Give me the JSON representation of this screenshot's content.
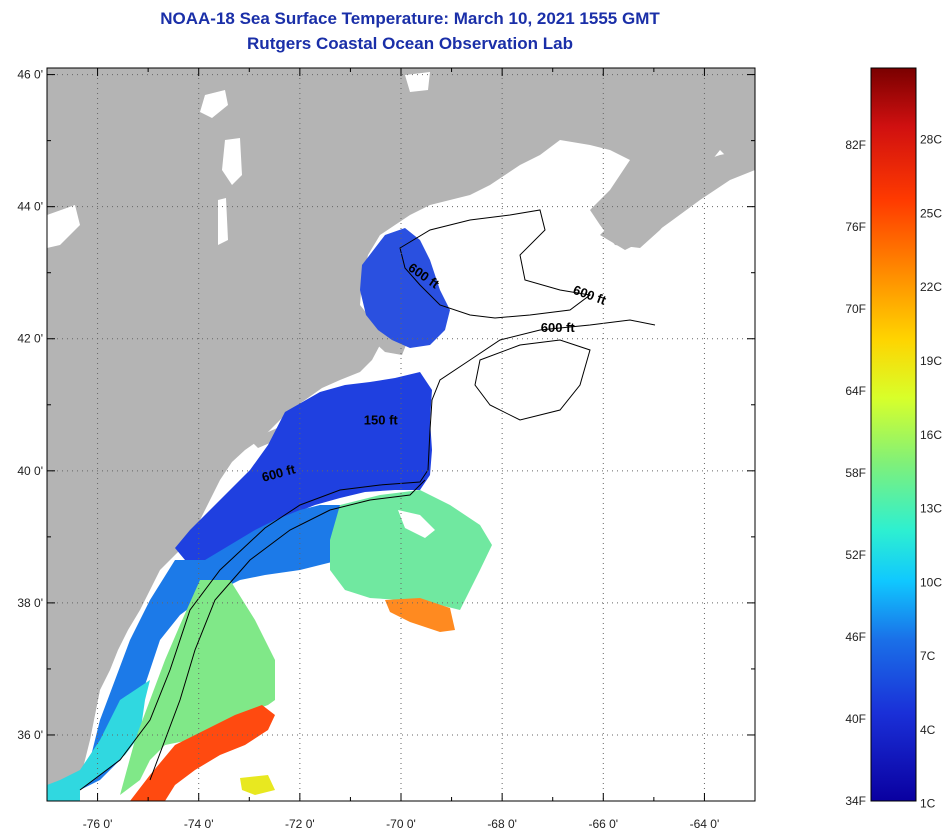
{
  "header": {
    "title": "NOAA-18 Sea Surface Temperature:  March 10, 2021 1555 GMT",
    "subtitle": "Rutgers Coastal Ocean Observation Lab"
  },
  "map": {
    "lat_ticks": [
      {
        "value": 46,
        "label": "46 0'"
      },
      {
        "value": 44,
        "label": "44 0'"
      },
      {
        "value": 42,
        "label": "42 0'"
      },
      {
        "value": 40,
        "label": "40 0'"
      },
      {
        "value": 38,
        "label": "38 0'"
      },
      {
        "value": 36,
        "label": "36 0'"
      }
    ],
    "lon_ticks": [
      {
        "value": -76,
        "label": "-76 0'"
      },
      {
        "value": -74,
        "label": "-74 0'"
      },
      {
        "value": -72,
        "label": "-72 0'"
      },
      {
        "value": -70,
        "label": "-70 0'"
      },
      {
        "value": -68,
        "label": "-68 0'"
      },
      {
        "value": -66,
        "label": "-66 0'"
      },
      {
        "value": -64,
        "label": "-64 0'"
      }
    ],
    "lat_range": [
      35,
      46.1
    ],
    "lon_range": [
      -77,
      -63
    ],
    "contour_labels": [
      {
        "text": "600 ft",
        "lon": -69.6,
        "lat": 42.9
      },
      {
        "text": "600 ft",
        "lon": -66.3,
        "lat": 42.6
      },
      {
        "text": "600 ft",
        "lon": -66.9,
        "lat": 42.1
      },
      {
        "text": "150 ft",
        "lon": -70.4,
        "lat": 40.7
      },
      {
        "text": "600 ft",
        "lon": -72.4,
        "lat": 39.9
      }
    ],
    "colors": {
      "land": "#b4b4b4",
      "ocean_nodata": "#ffffff",
      "grid": "#555555"
    }
  },
  "colorbar": {
    "fahrenheit": [
      "82F",
      "76F",
      "70F",
      "64F",
      "58F",
      "52F",
      "46F",
      "40F",
      "34F"
    ],
    "celsius": [
      "28C",
      "25C",
      "22C",
      "19C",
      "16C",
      "13C",
      "10C",
      "7C",
      "4C",
      "1C"
    ],
    "colors_top_to_bottom": [
      "#7a0000",
      "#d01010",
      "#ff3a00",
      "#ff8c00",
      "#ffd400",
      "#d8ff2a",
      "#7ff07a",
      "#2ef0d0",
      "#10c8ff",
      "#1a70e8",
      "#1a30d8",
      "#0a00a0"
    ]
  }
}
